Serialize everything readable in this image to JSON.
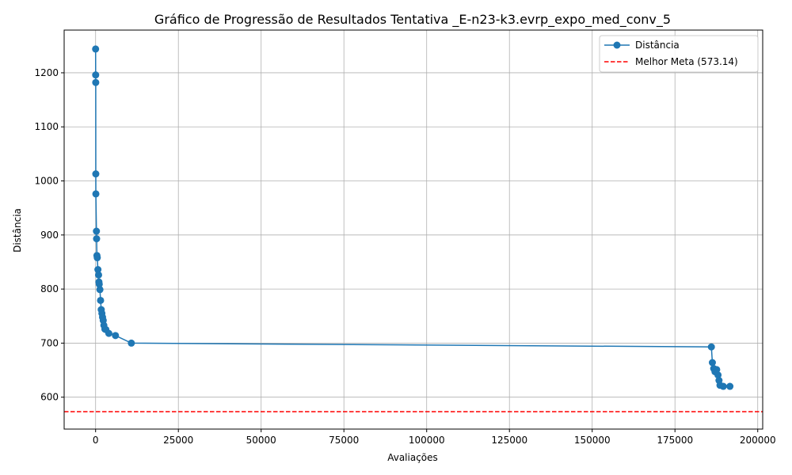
{
  "chart_data": {
    "type": "line",
    "title": "Gráfico de Progressão de Resultados Tentativa _E-n23-k3.evrp_expo_med_conv_5",
    "xlabel": "Avaliações",
    "ylabel": "Distância",
    "xlim": [
      -9500,
      201500
    ],
    "ylim": [
      541,
      1279
    ],
    "x_ticks": [
      0,
      25000,
      50000,
      75000,
      100000,
      125000,
      150000,
      175000,
      200000
    ],
    "y_ticks": [
      600,
      700,
      800,
      900,
      1000,
      1100,
      1200
    ],
    "grid": true,
    "legend_position": "upper-right",
    "series": [
      {
        "name": "Distância",
        "color": "#1f77b4",
        "marker": "circle",
        "x": [
          0,
          20,
          40,
          60,
          80,
          250,
          300,
          400,
          500,
          700,
          900,
          1000,
          1100,
          1300,
          1500,
          1700,
          1900,
          2100,
          2300,
          2500,
          2800,
          3100,
          4000,
          6000,
          10800,
          186000,
          186300,
          186700,
          187100,
          187600,
          188000,
          188300,
          188600,
          189600,
          191600
        ],
        "y": [
          1244,
          1196,
          1182,
          1013,
          976,
          907,
          893,
          862,
          858,
          836,
          826,
          813,
          809,
          799,
          779,
          762,
          755,
          748,
          742,
          733,
          726,
          725,
          718,
          714,
          700,
          693,
          664,
          653,
          647,
          651,
          641,
          631,
          622,
          620,
          620
        ]
      }
    ],
    "reference_line": {
      "name": "Melhor Meta (573.14)",
      "value": 573.14,
      "color": "#ff0000",
      "style": "dashed"
    }
  }
}
